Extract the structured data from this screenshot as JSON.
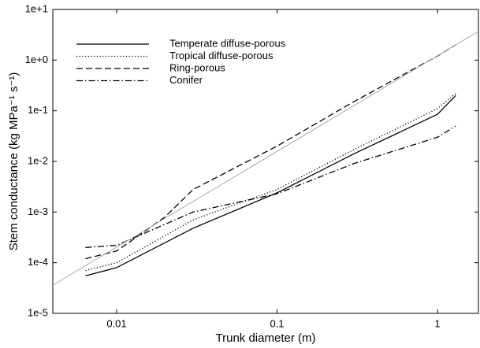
{
  "chart_data": {
    "type": "line",
    "xlabel": "Trunk diameter (m)",
    "ylabel": "Stem conductance (kg MPa⁻¹ s⁻¹)",
    "xscale": "log",
    "yscale": "log",
    "xlim": [
      0.004,
      1.8
    ],
    "ylim": [
      1e-05,
      10
    ],
    "xticks": [
      0.01,
      0.1,
      1
    ],
    "yticks": [
      {
        "value": 1e-05,
        "label": "1e-5"
      },
      {
        "value": 0.0001,
        "label": "1e-4"
      },
      {
        "value": 0.001,
        "label": "1e-3"
      },
      {
        "value": 0.01,
        "label": "1e-2"
      },
      {
        "value": 0.1,
        "label": "1e-1"
      },
      {
        "value": 1,
        "label": "1e+0"
      },
      {
        "value": 10,
        "label": "1e+1"
      }
    ],
    "legend": "upper left",
    "series": [
      {
        "name": "Temperate diffuse-porous",
        "color": "#000000",
        "dash": "solid",
        "x": [
          0.0064,
          0.01,
          0.03,
          0.1,
          0.3,
          1,
          1.3
        ],
        "values": [
          5.5e-05,
          8e-05,
          0.00048,
          0.0024,
          0.014,
          0.085,
          0.2
        ]
      },
      {
        "name": "Tropical diffuse-porous",
        "color": "#000000",
        "dash": "dotted",
        "x": [
          0.0064,
          0.01,
          0.03,
          0.1,
          0.3,
          1,
          1.3
        ],
        "values": [
          7e-05,
          0.0001,
          0.0007,
          0.0028,
          0.017,
          0.11,
          0.22
        ]
      },
      {
        "name": "Ring-porous",
        "color": "#000000",
        "dash": "dashed",
        "x": [
          0.0064,
          0.01,
          0.02,
          0.03,
          0.1,
          0.3,
          1,
          1.3
        ],
        "values": [
          0.00012,
          0.00017,
          0.0008,
          0.0028,
          0.02,
          0.15,
          1.2,
          2
        ]
      },
      {
        "name": "Conifer",
        "color": "#000000",
        "dash": "dashdot",
        "x": [
          0.0064,
          0.01,
          0.03,
          0.1,
          0.3,
          1,
          1.3
        ],
        "values": [
          0.0002,
          0.00022,
          0.001,
          0.0023,
          0.009,
          0.03,
          0.05
        ]
      },
      {
        "color": "#aaaaaa",
        "dash": "solid",
        "x": [
          0.004,
          1.8
        ],
        "values": [
          3.6e-05,
          3.7
        ]
      }
    ]
  }
}
